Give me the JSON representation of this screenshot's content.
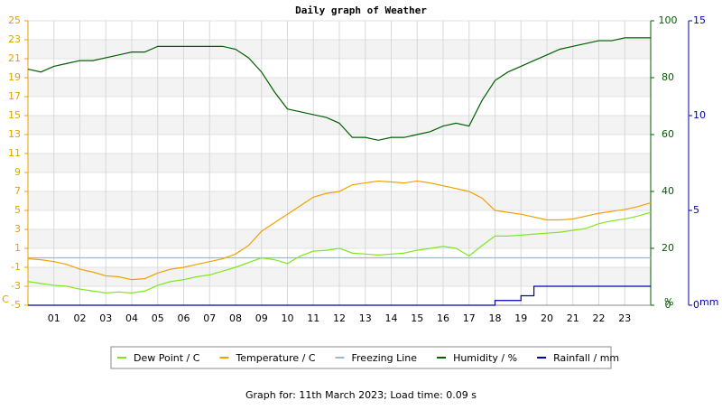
{
  "chart_data": {
    "type": "line",
    "title": "Daily graph of Weather",
    "footer": "Graph for: 11th March 2023; Load time: 0.09 s",
    "ylabel": "C",
    "y2label": "%",
    "y3label": "mm",
    "grid": true,
    "x": [
      0,
      0.5,
      1,
      1.5,
      2,
      2.5,
      3,
      3.5,
      4,
      4.5,
      5,
      5.5,
      6,
      6.5,
      7,
      7.5,
      8,
      8.5,
      9,
      9.5,
      10,
      10.5,
      11,
      11.5,
      12,
      12.5,
      13,
      13.5,
      14,
      14.5,
      15,
      15.5,
      16,
      16.5,
      17,
      17.5,
      18,
      18.5,
      19,
      19.5,
      20,
      20.5,
      21,
      21.5,
      22,
      22.5,
      23,
      23.5,
      24
    ],
    "xlim": [
      0,
      24
    ],
    "xticks": [
      {
        "value": 1,
        "label": "01"
      },
      {
        "value": 2,
        "label": "02"
      },
      {
        "value": 3,
        "label": "03"
      },
      {
        "value": 4,
        "label": "04"
      },
      {
        "value": 5,
        "label": "05"
      },
      {
        "value": 6,
        "label": "06"
      },
      {
        "value": 7,
        "label": "07"
      },
      {
        "value": 8,
        "label": "08"
      },
      {
        "value": 9,
        "label": "09"
      },
      {
        "value": 10,
        "label": "10"
      },
      {
        "value": 11,
        "label": "11"
      },
      {
        "value": 12,
        "label": "12"
      },
      {
        "value": 13,
        "label": "13"
      },
      {
        "value": 14,
        "label": "14"
      },
      {
        "value": 15,
        "label": "15"
      },
      {
        "value": 16,
        "label": "16"
      },
      {
        "value": 17,
        "label": "17"
      },
      {
        "value": 18,
        "label": "18"
      },
      {
        "value": 19,
        "label": "19"
      },
      {
        "value": 20,
        "label": "20"
      },
      {
        "value": 21,
        "label": "21"
      },
      {
        "value": 22,
        "label": "22"
      },
      {
        "value": 23,
        "label": "23"
      }
    ],
    "ylim": [
      -5,
      25
    ],
    "yticks": [
      -5,
      -3,
      -1,
      1,
      3,
      5,
      7,
      9,
      11,
      13,
      15,
      17,
      19,
      21,
      23,
      25
    ],
    "y2lim": [
      0,
      100
    ],
    "y2ticks": [
      0,
      20,
      40,
      60,
      80,
      100
    ],
    "y3lim": [
      0,
      15
    ],
    "y3ticks": [
      0,
      5,
      10,
      15
    ],
    "series": [
      {
        "name": "Dew Point / C",
        "color": "#7ee81c",
        "values": [
          -2.5,
          -2.7,
          -2.9,
          -3.0,
          -3.3,
          -3.5,
          -3.7,
          -3.6,
          -3.7,
          -3.5,
          -2.9,
          -2.5,
          -2.3,
          -2.0,
          -1.8,
          -1.4,
          -1.0,
          -0.5,
          0,
          -0.2,
          -0.6,
          0.2,
          0.7,
          0.8,
          1.0,
          0.5,
          0.4,
          0.3,
          0.4,
          0.5,
          0.8,
          1.0,
          1.2,
          1.0,
          0.2,
          1.3,
          2.3,
          2.3,
          2.4,
          2.5,
          2.6,
          2.7,
          2.9,
          3.1,
          3.6,
          3.9,
          4.1,
          4.4,
          4.8
        ]
      },
      {
        "name": "Temperature / C",
        "color": "#f0a000",
        "values": [
          -0.1,
          -0.2,
          -0.4,
          -0.7,
          -1.2,
          -1.5,
          -1.9,
          -2.0,
          -2.3,
          -2.2,
          -1.6,
          -1.2,
          -1.0,
          -0.7,
          -0.4,
          -0.1,
          0.4,
          1.3,
          2.8,
          3.7,
          4.6,
          5.5,
          6.4,
          6.8,
          7.0,
          7.7,
          7.9,
          8.1,
          8.0,
          7.9,
          8.1,
          7.9,
          7.6,
          7.3,
          7.0,
          6.3,
          5.0,
          4.8,
          4.6,
          4.3,
          4.0,
          4.0,
          4.1,
          4.4,
          4.7,
          4.9,
          5.1,
          5.4,
          5.8
        ]
      },
      {
        "name": "Freezing Line",
        "color": "#9bb8cc",
        "values": [
          0,
          0,
          0,
          0,
          0,
          0,
          0,
          0,
          0,
          0,
          0,
          0,
          0,
          0,
          0,
          0,
          0,
          0,
          0,
          0,
          0,
          0,
          0,
          0,
          0,
          0,
          0,
          0,
          0,
          0,
          0,
          0,
          0,
          0,
          0,
          0,
          0,
          0,
          0,
          0,
          0,
          0,
          0,
          0,
          0,
          0,
          0,
          0,
          0
        ]
      },
      {
        "name": "Humidity / %",
        "color": "#006000",
        "axis": "y2",
        "values": [
          83,
          82,
          84,
          85,
          86,
          86,
          87,
          88,
          89,
          89,
          91,
          91,
          91,
          91,
          91,
          91,
          90,
          87,
          82,
          75,
          69,
          68,
          67,
          66,
          64,
          59,
          59,
          58,
          59,
          59,
          60,
          61,
          63,
          64,
          63,
          72,
          79,
          82,
          84,
          86,
          88,
          90,
          91,
          92,
          93,
          93,
          94,
          94,
          94
        ]
      },
      {
        "name": "Rainfall / mm",
        "color": "#0000b0",
        "axis": "y3",
        "step": true,
        "values": [
          0,
          0,
          0,
          0,
          0,
          0,
          0,
          0,
          0,
          0,
          0,
          0,
          0,
          0,
          0,
          0,
          0,
          0,
          0,
          0,
          0,
          0,
          0,
          0,
          0,
          0,
          0,
          0,
          0,
          0,
          0,
          0,
          0,
          0,
          0,
          0,
          0.25,
          0.25,
          0.5,
          1.0,
          1.0,
          1.0,
          1.0,
          1.0,
          1.0,
          1.0,
          1.0,
          1.0,
          1.0
        ]
      }
    ]
  }
}
